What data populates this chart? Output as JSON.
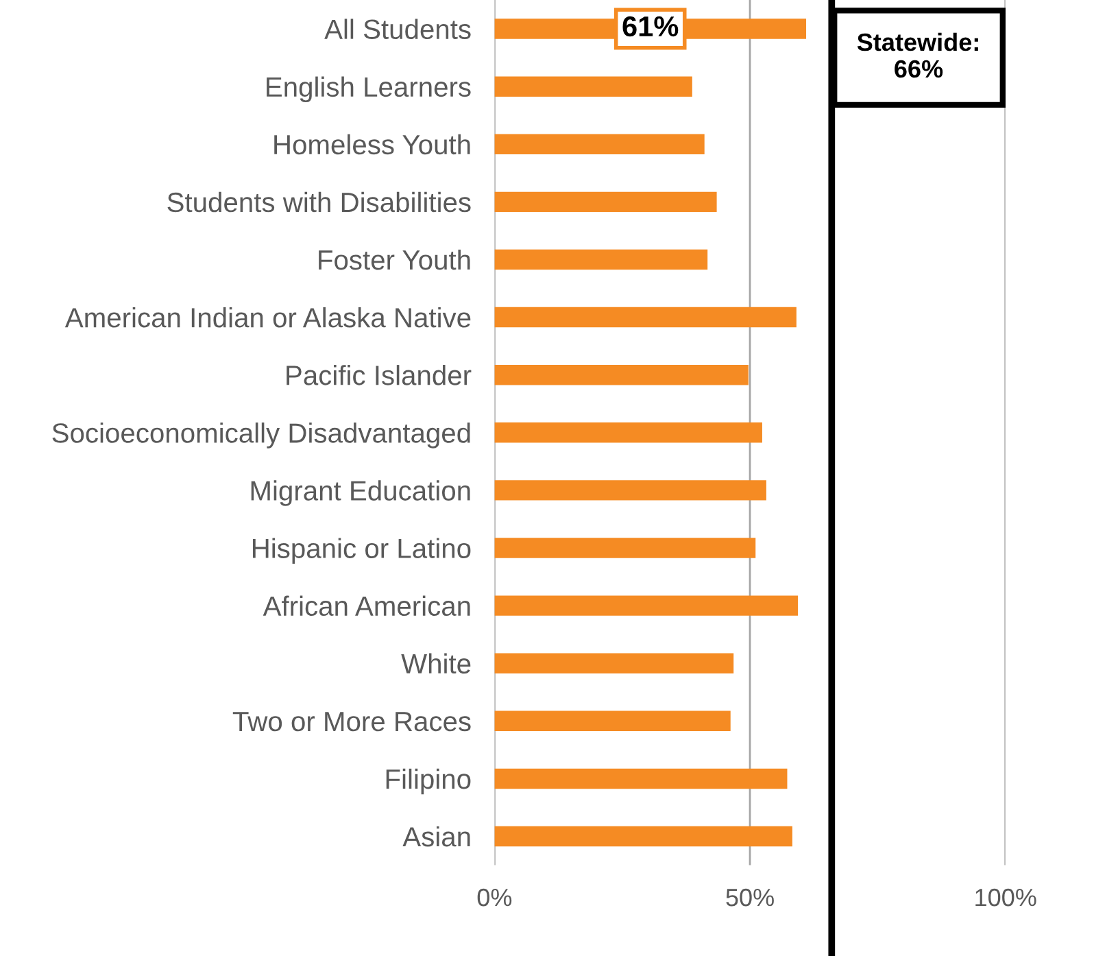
{
  "chart_data": {
    "type": "bar",
    "orientation": "horizontal",
    "categories": [
      "All Students",
      "English Learners",
      "Homeless Youth",
      "Students with Disabilities",
      "Foster Youth",
      "American Indian or Alaska Native",
      "Pacific Islander",
      "Socioeconomically Disadvantaged",
      "Migrant Education",
      "Hispanic or Latino",
      "African American",
      "White",
      "Two or More Races",
      "Filipino",
      "Asian"
    ],
    "values": [
      61,
      38.7,
      41.1,
      43.5,
      41.7,
      59.1,
      49.7,
      52.4,
      53.2,
      51.1,
      59.4,
      46.8,
      46.2,
      57.3,
      58.3
    ],
    "value_labels": [
      "61%",
      null,
      null,
      null,
      null,
      null,
      null,
      null,
      null,
      null,
      null,
      null,
      null,
      null,
      null
    ],
    "color": "#f58b23",
    "xlim": [
      0,
      100
    ],
    "xticks": [
      {
        "value": 0,
        "label": "0%"
      },
      {
        "value": 50,
        "label": "50%"
      },
      {
        "value": 100,
        "label": "100%"
      }
    ],
    "grid": "x",
    "ref_lines": [
      {
        "axis": "x",
        "value": 66,
        "label": "Statewide:\n66%",
        "color": "#000000"
      }
    ]
  }
}
